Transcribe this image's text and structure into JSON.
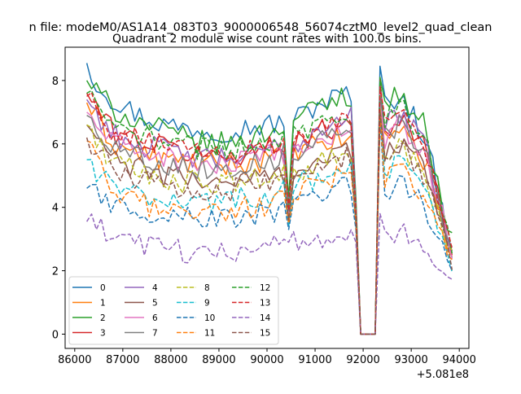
{
  "figure": {
    "suptitle": "n file: modeM0/AS1A14_083T03_9000006548_56074cztM0_level2_quad_clean",
    "title": "Quadrant 2 module wise count rates with 100.0s bins."
  },
  "chart_data": {
    "type": "line",
    "title": "Quadrant 2 module wise count rates with 100.0s bins.",
    "xlabel": "",
    "ylabel": "",
    "x_offset_text": "+5.081e8",
    "xlim": [
      85800,
      94200
    ],
    "ylim": [
      -0.45,
      9.05
    ],
    "xticks": [
      86000,
      87000,
      88000,
      89000,
      90000,
      91000,
      92000,
      93000,
      94000
    ],
    "yticks": [
      0,
      2,
      4,
      6,
      8
    ],
    "legend": {
      "location": "lower-left",
      "ncol": 4
    },
    "x_range": [
      86250,
      93850
    ],
    "gap_points": {
      "x": [
        91950,
        92050,
        92150,
        92250
      ],
      "value": 0
    },
    "series": [
      {
        "name": "0",
        "color": "#1f77b4",
        "style": "solid",
        "base": [
          8.3,
          7.4,
          6.9,
          6.6,
          6.5,
          6.4,
          6.5,
          6.6,
          6.8,
          7.3,
          7.6,
          6.9,
          7.6,
          6.2,
          2.6
        ],
        "start": 8.55,
        "peak": 8.45,
        "dip": 4.0
      },
      {
        "name": "1",
        "color": "#ff7f0e",
        "style": "solid",
        "base": [
          7.3,
          6.0,
          5.7,
          5.5,
          5.4,
          5.3,
          5.4,
          5.5,
          5.7,
          6.0,
          6.2,
          5.8,
          6.6,
          5.4,
          2.4
        ],
        "start": 7.3,
        "peak": 7.7,
        "dip": 3.7
      },
      {
        "name": "2",
        "color": "#2ca02c",
        "style": "solid",
        "base": [
          8.0,
          7.1,
          6.7,
          6.4,
          6.1,
          6.0,
          6.1,
          6.4,
          6.8,
          7.2,
          7.6,
          7.0,
          7.6,
          6.5,
          2.9
        ],
        "start": 8.0,
        "peak": 8.1,
        "dip": 4.3
      },
      {
        "name": "3",
        "color": "#d62728",
        "style": "solid",
        "base": [
          7.6,
          6.4,
          6.1,
          5.9,
          5.7,
          5.6,
          5.7,
          5.9,
          6.1,
          6.4,
          6.7,
          6.1,
          6.9,
          5.8,
          2.7
        ],
        "start": 7.6,
        "peak": 8.0,
        "dip": 3.9
      },
      {
        "name": "4",
        "color": "#9467bd",
        "style": "solid",
        "base": [
          7.4,
          6.3,
          6.0,
          5.8,
          5.6,
          5.5,
          5.6,
          5.8,
          6.0,
          6.5,
          7.0,
          6.2,
          7.0,
          5.9,
          2.7
        ],
        "start": 7.4,
        "peak": 7.9,
        "dip": 4.1
      },
      {
        "name": "5",
        "color": "#8c564b",
        "style": "solid",
        "base": [
          6.6,
          5.5,
          5.2,
          5.0,
          4.9,
          4.8,
          4.9,
          5.0,
          5.2,
          5.5,
          5.8,
          5.4,
          6.1,
          5.1,
          2.5
        ],
        "start": 6.6,
        "peak": 7.2,
        "dip": 3.6
      },
      {
        "name": "6",
        "color": "#e377c2",
        "style": "solid",
        "base": [
          7.0,
          6.0,
          5.8,
          5.6,
          5.4,
          5.3,
          5.4,
          5.6,
          5.8,
          6.1,
          6.4,
          5.9,
          6.6,
          5.6,
          2.6
        ],
        "start": 7.0,
        "peak": 7.6,
        "dip": 3.8
      },
      {
        "name": "7",
        "color": "#7f7f7f",
        "style": "solid",
        "base": [
          6.9,
          5.9,
          5.6,
          5.4,
          5.3,
          5.2,
          5.3,
          5.5,
          5.8,
          6.2,
          6.8,
          6.0,
          6.6,
          5.6,
          2.6
        ],
        "start": 6.9,
        "peak": 7.5,
        "dip": 3.9
      },
      {
        "name": "8",
        "color": "#bcbd22",
        "style": "dashed",
        "base": [
          6.6,
          5.4,
          5.1,
          4.9,
          4.8,
          4.7,
          4.8,
          4.9,
          5.1,
          5.4,
          5.6,
          5.1,
          5.9,
          4.9,
          2.4
        ],
        "start": 6.6,
        "peak": 7.1,
        "dip": 3.5
      },
      {
        "name": "9",
        "color": "#17becf",
        "style": "dashed",
        "base": [
          5.5,
          4.6,
          4.4,
          4.3,
          4.2,
          4.2,
          4.3,
          4.4,
          4.7,
          5.0,
          5.3,
          4.7,
          5.4,
          4.5,
          2.2
        ],
        "start": 5.5,
        "peak": 6.9,
        "dip": 3.4
      },
      {
        "name": "10",
        "color": "#1f77b4",
        "style": "dashed",
        "base": [
          4.6,
          4.1,
          3.9,
          3.8,
          3.7,
          3.6,
          3.7,
          3.8,
          4.0,
          4.3,
          4.7,
          4.2,
          4.8,
          4.0,
          2.0
        ],
        "start": 4.6,
        "peak": 6.8,
        "dip": 3.3
      },
      {
        "name": "11",
        "color": "#ff7f0e",
        "style": "dashed",
        "base": [
          6.1,
          4.4,
          4.1,
          4.0,
          3.9,
          3.9,
          4.0,
          4.1,
          4.4,
          4.8,
          5.1,
          4.5,
          5.2,
          4.3,
          2.1
        ],
        "start": 6.1,
        "peak": 7.0,
        "dip": 3.5
      },
      {
        "name": "12",
        "color": "#2ca02c",
        "style": "dashed",
        "base": [
          7.6,
          6.5,
          6.3,
          6.1,
          5.9,
          5.8,
          5.9,
          6.1,
          6.3,
          6.7,
          7.1,
          6.5,
          7.2,
          6.2,
          2.8
        ],
        "start": 7.6,
        "peak": 8.0,
        "dip": 4.0
      },
      {
        "name": "13",
        "color": "#d62728",
        "style": "dashed",
        "base": [
          7.5,
          6.4,
          6.1,
          5.9,
          5.8,
          5.7,
          5.8,
          5.9,
          6.1,
          6.4,
          6.8,
          6.2,
          6.9,
          5.9,
          2.7
        ],
        "start": 7.5,
        "peak": 7.8,
        "dip": 3.9
      },
      {
        "name": "14",
        "color": "#9467bd",
        "style": "dashed",
        "base": [
          3.5,
          3.1,
          2.8,
          2.7,
          2.6,
          2.6,
          2.7,
          2.8,
          2.9,
          3.0,
          3.1,
          2.9,
          3.2,
          2.7,
          1.5
        ],
        "start": 3.55,
        "peak": 3.8,
        "dip": 2.9
      },
      {
        "name": "15",
        "color": "#8c564b",
        "style": "dashed",
        "base": [
          6.2,
          5.2,
          4.9,
          4.7,
          4.6,
          4.5,
          4.6,
          4.8,
          5.0,
          5.3,
          5.6,
          5.1,
          5.9,
          4.8,
          2.3
        ],
        "start": 6.2,
        "peak": 7.0,
        "dip": 3.6
      }
    ]
  }
}
